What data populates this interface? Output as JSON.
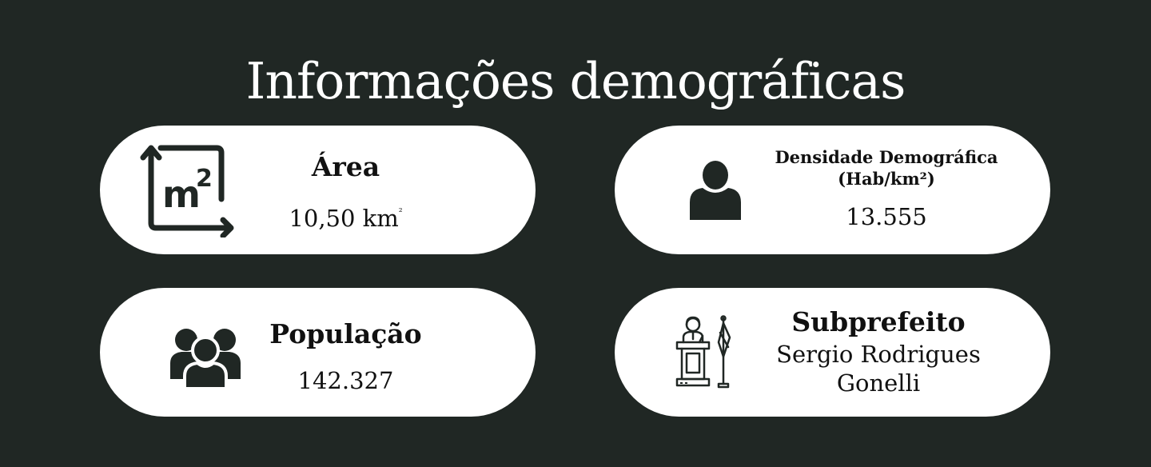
{
  "title": "Informações demográficas",
  "colors": {
    "background": "#202724",
    "card": "#ffffff",
    "text": "#111111",
    "icon": "#202724"
  },
  "cards": [
    {
      "icon": "area-m2-icon",
      "label": "Área",
      "value": "10,50 km",
      "value_sup": "²"
    },
    {
      "icon": "person-icon",
      "label_line1": "Densidade Demográfica",
      "label_line2": "(Hab/km²)",
      "value": "13.555"
    },
    {
      "icon": "group-icon",
      "label": "População",
      "value": "142.327"
    },
    {
      "icon": "podium-speaker-icon",
      "label": "Subprefeito",
      "value_line1": "Sergio Rodrigues",
      "value_line2": "Gonelli"
    }
  ]
}
